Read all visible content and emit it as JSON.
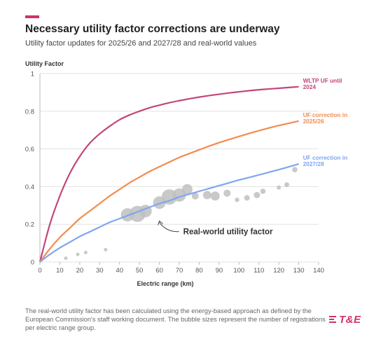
{
  "header": {
    "title": "Necessary utility factor corrections are underway",
    "subtitle": "Utility factor updates for 2025/26 and 2027/28 and real-world values",
    "accent_color": "#d1306f"
  },
  "footer": {
    "note": "The real-world utility factor has been calculated using the energy-based approach as defined by the European Commission's staff working document. The bubble sizes represent the number of registrations per electric range group.",
    "logo_text": "T&E"
  },
  "chart_data": {
    "type": "line",
    "ylabel": "Utility Factor",
    "xlabel": "Electric range (km)",
    "xlim": [
      0,
      140
    ],
    "ylim": [
      0,
      1
    ],
    "x_ticks": [
      0,
      10,
      20,
      30,
      40,
      50,
      60,
      70,
      80,
      90,
      100,
      110,
      120,
      130,
      140
    ],
    "y_ticks": [
      0,
      0.2,
      0.4,
      0.6,
      0.8,
      1
    ],
    "y_tick_labels": [
      "0",
      "0.2",
      "0.4",
      "0.6",
      "0.8",
      "1"
    ],
    "grid": "horizontal",
    "series": [
      {
        "name": "WLTP UF until 2024",
        "label_lines": [
          "WLTP UF until",
          "2024"
        ],
        "color": "#c2477b",
        "x": [
          0,
          5,
          10,
          15,
          20,
          25,
          30,
          35,
          40,
          45,
          50,
          55,
          60,
          65,
          70,
          75,
          80,
          85,
          90,
          95,
          100,
          105,
          110,
          115,
          120,
          125,
          130
        ],
        "values": [
          0.0,
          0.2,
          0.35,
          0.47,
          0.56,
          0.63,
          0.68,
          0.72,
          0.755,
          0.78,
          0.8,
          0.818,
          0.832,
          0.845,
          0.856,
          0.866,
          0.875,
          0.883,
          0.89,
          0.897,
          0.903,
          0.909,
          0.914,
          0.918,
          0.922,
          0.926,
          0.93
        ]
      },
      {
        "name": "UF correction in 2025/26",
        "label_lines": [
          "UF correction in",
          "2025/26"
        ],
        "color": "#f28c4e",
        "x": [
          0,
          5,
          10,
          15,
          20,
          25,
          30,
          35,
          40,
          45,
          50,
          55,
          60,
          65,
          70,
          75,
          80,
          85,
          90,
          95,
          100,
          105,
          110,
          115,
          120,
          125,
          130
        ],
        "values": [
          0.0,
          0.07,
          0.13,
          0.18,
          0.23,
          0.27,
          0.31,
          0.35,
          0.385,
          0.42,
          0.45,
          0.48,
          0.505,
          0.53,
          0.555,
          0.575,
          0.595,
          0.615,
          0.633,
          0.65,
          0.666,
          0.682,
          0.697,
          0.711,
          0.724,
          0.736,
          0.748
        ]
      },
      {
        "name": "UF correction in 2027/28",
        "label_lines": [
          "UF correction in",
          "2027/28"
        ],
        "color": "#7fa6f0",
        "x": [
          0,
          5,
          10,
          15,
          20,
          25,
          30,
          35,
          40,
          45,
          50,
          55,
          60,
          65,
          70,
          75,
          80,
          85,
          90,
          95,
          100,
          105,
          110,
          115,
          120,
          125,
          130
        ],
        "values": [
          0.0,
          0.04,
          0.075,
          0.105,
          0.135,
          0.16,
          0.185,
          0.21,
          0.23,
          0.25,
          0.27,
          0.29,
          0.31,
          0.325,
          0.345,
          0.36,
          0.375,
          0.39,
          0.405,
          0.42,
          0.435,
          0.448,
          0.462,
          0.476,
          0.49,
          0.505,
          0.52
        ]
      }
    ],
    "bubbles": {
      "name": "Real-world utility factor",
      "color": "#bfbfbf",
      "points": [
        {
          "x": 13,
          "y": 0.02,
          "size": 0.05
        },
        {
          "x": 19,
          "y": 0.04,
          "size": 0.05
        },
        {
          "x": 23,
          "y": 0.05,
          "size": 0.05
        },
        {
          "x": 33,
          "y": 0.065,
          "size": 0.05
        },
        {
          "x": 44,
          "y": 0.25,
          "size": 0.75
        },
        {
          "x": 49,
          "y": 0.255,
          "size": 0.95
        },
        {
          "x": 53,
          "y": 0.27,
          "size": 0.7
        },
        {
          "x": 60,
          "y": 0.315,
          "size": 0.7
        },
        {
          "x": 65,
          "y": 0.345,
          "size": 0.9
        },
        {
          "x": 70,
          "y": 0.355,
          "size": 0.75
        },
        {
          "x": 74,
          "y": 0.385,
          "size": 0.55
        },
        {
          "x": 78,
          "y": 0.35,
          "size": 0.3
        },
        {
          "x": 84,
          "y": 0.355,
          "size": 0.4
        },
        {
          "x": 88,
          "y": 0.35,
          "size": 0.45
        },
        {
          "x": 94,
          "y": 0.365,
          "size": 0.3
        },
        {
          "x": 99,
          "y": 0.33,
          "size": 0.12
        },
        {
          "x": 104,
          "y": 0.34,
          "size": 0.2
        },
        {
          "x": 109,
          "y": 0.355,
          "size": 0.25
        },
        {
          "x": 112,
          "y": 0.375,
          "size": 0.18
        },
        {
          "x": 120,
          "y": 0.395,
          "size": 0.1
        },
        {
          "x": 124,
          "y": 0.41,
          "size": 0.15
        },
        {
          "x": 128,
          "y": 0.49,
          "size": 0.18
        }
      ]
    },
    "annotation": {
      "text": "Real-world utility factor",
      "x": 72,
      "y": 0.15,
      "arrow_to": {
        "x": 60,
        "y": 0.225
      }
    }
  }
}
